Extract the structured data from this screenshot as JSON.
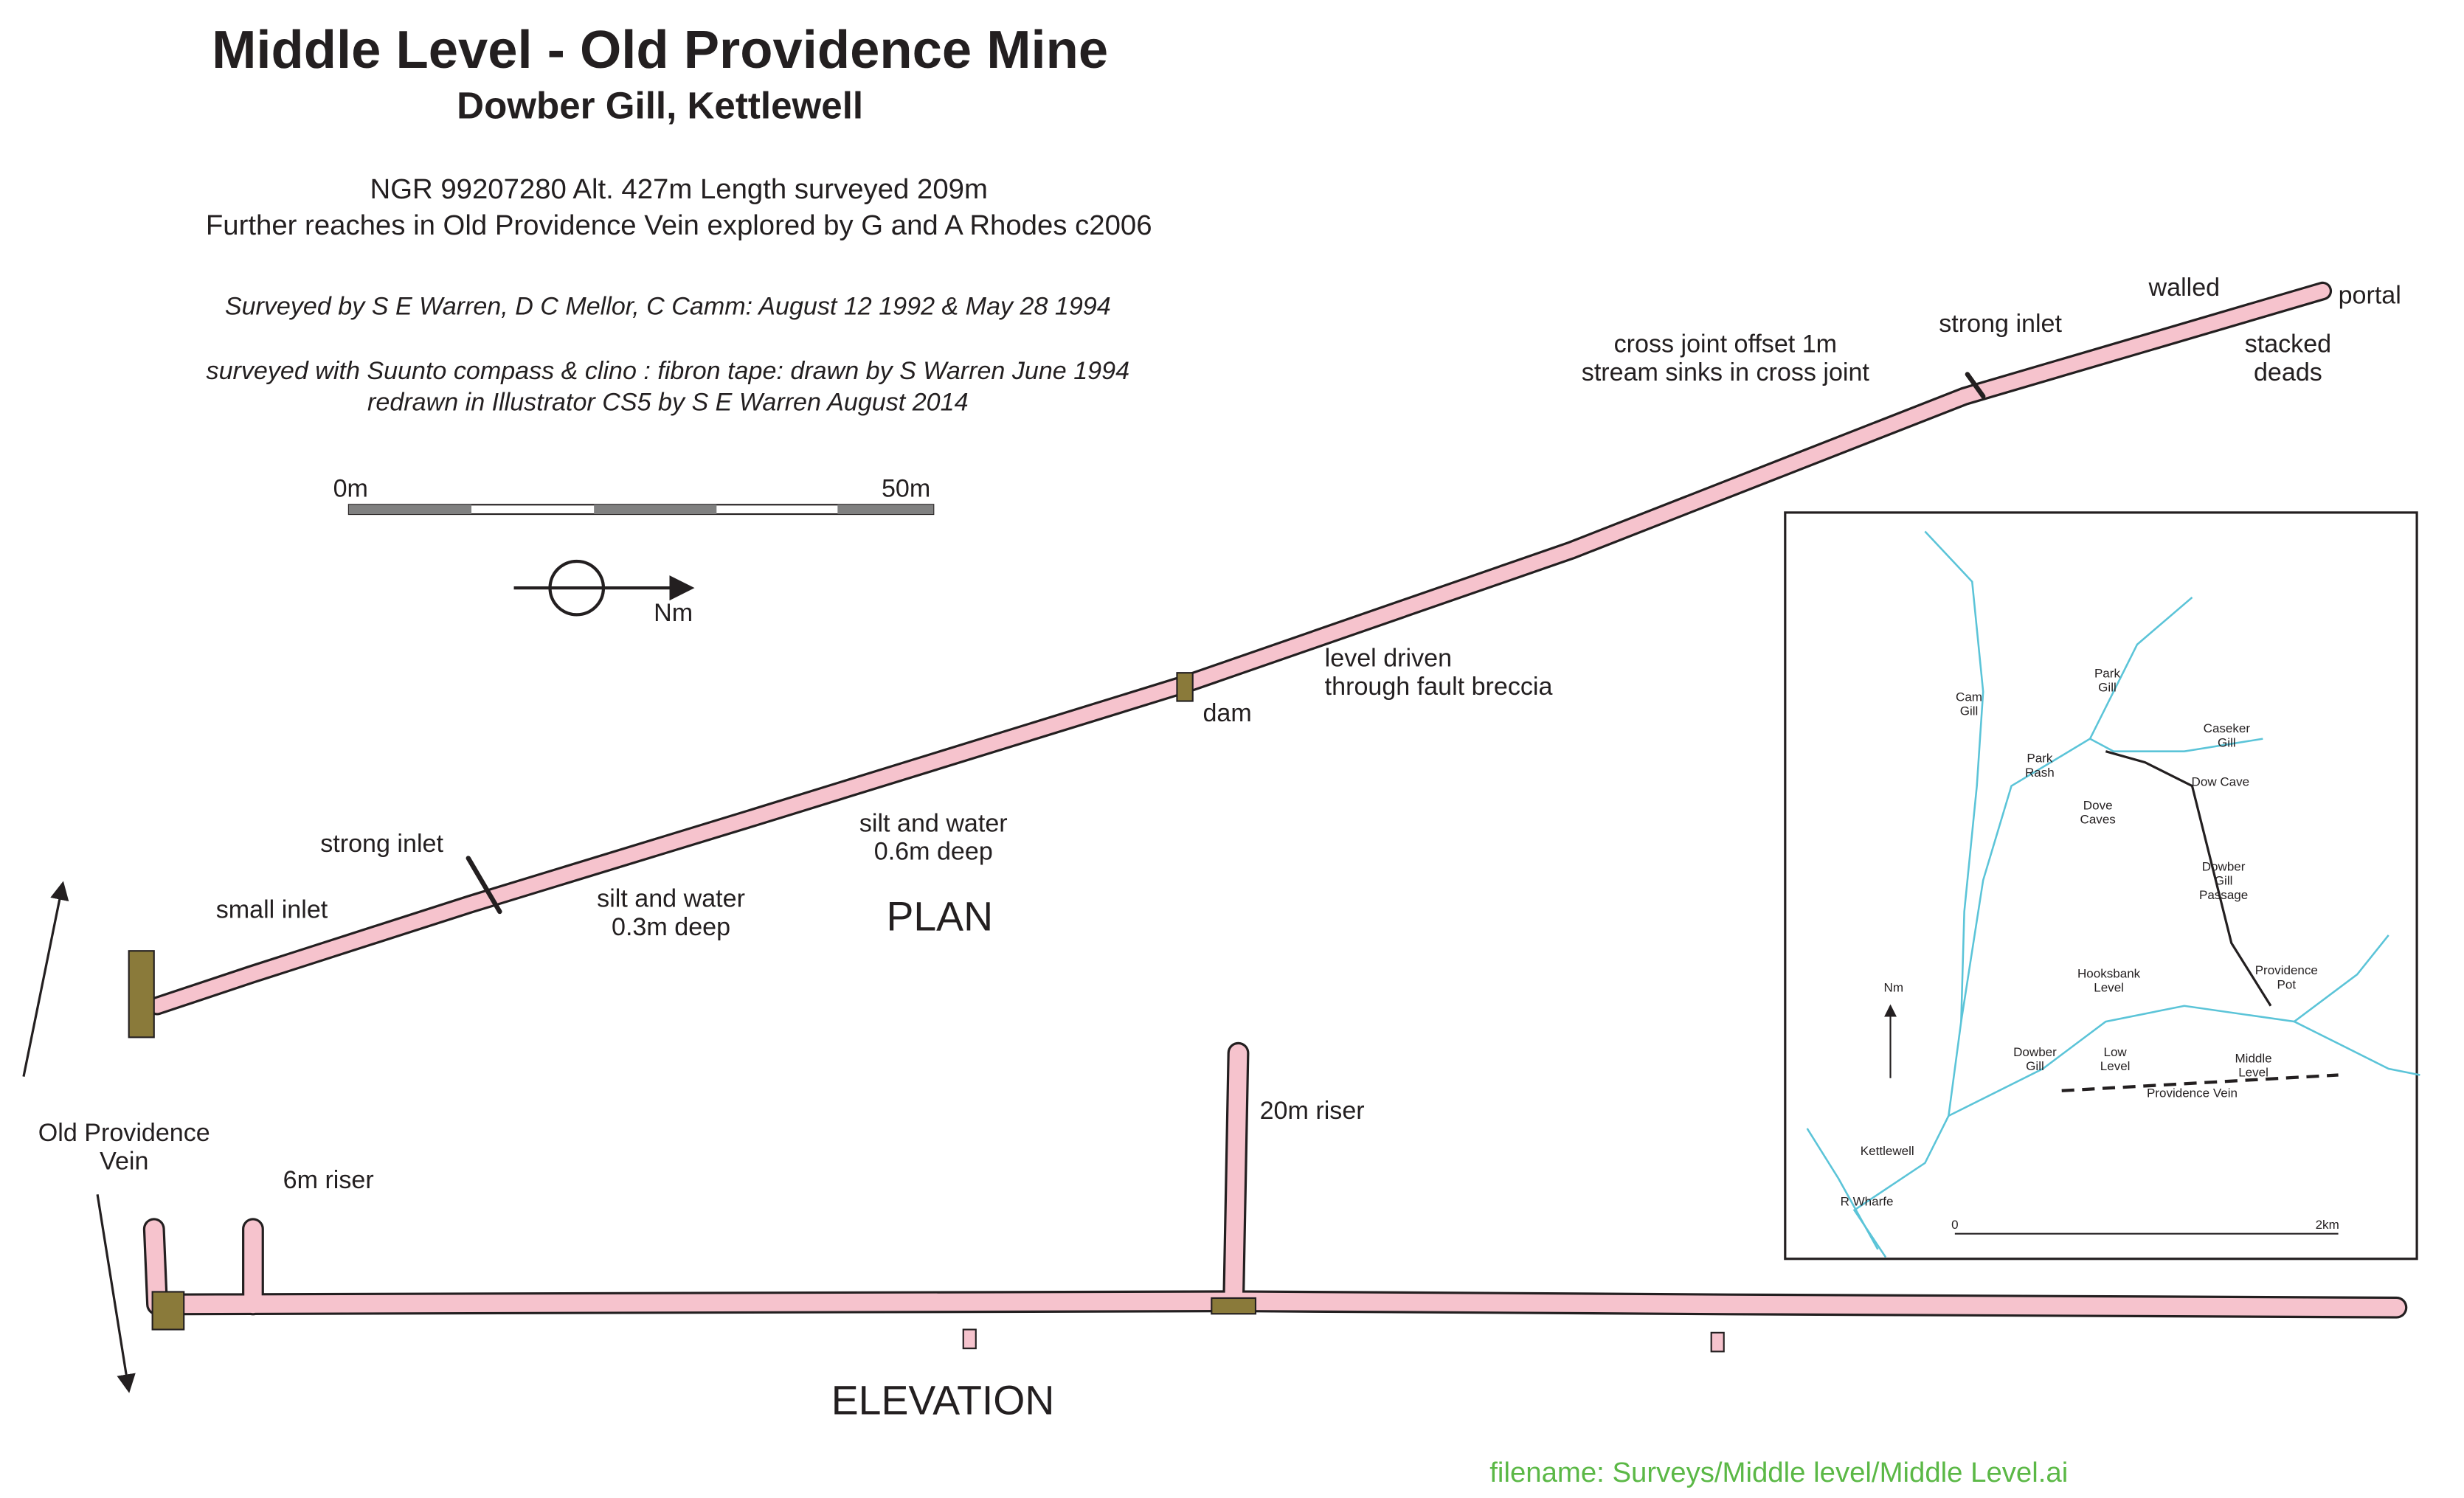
{
  "header": {
    "title": "Middle Level - Old Providence Mine",
    "subtitle": "Dowber Gill, Kettlewell",
    "info": [
      "NGR 99207280   Alt. 427m  Length surveyed 209m",
      "Further reaches in Old Providence Vein explored by G and A Rhodes c2006"
    ],
    "surveyors": "Surveyed by S  E Warren, D C Mellor, C Camm: August 12 1992 & May 28 1994",
    "credits": [
      "surveyed with Suunto compass & clino : fibron tape: drawn by S Warren June 1994",
      "redrawn in Illustrator CS5 by S E Warren August 2014"
    ]
  },
  "scale": {
    "start": "0m",
    "end": "50m"
  },
  "north": "Nm",
  "plan": {
    "title": "PLAN",
    "labels": [
      [
        "small inlet"
      ],
      [
        "strong inlet"
      ],
      [
        "silt and water",
        "0.3m deep"
      ],
      [
        "silt and water",
        "0.6m deep"
      ],
      [
        "dam"
      ],
      [
        "level driven",
        "through fault breccia"
      ],
      [
        "cross joint offset 1m",
        "stream sinks in cross joint"
      ],
      [
        "strong inlet"
      ],
      [
        "walled"
      ],
      [
        "portal"
      ],
      [
        "stacked",
        "deads"
      ]
    ]
  },
  "elevation": {
    "title": "ELEVATION",
    "vein": [
      "Old Providence",
      "Vein"
    ],
    "labels": [
      [
        "6m riser"
      ],
      [
        "20m riser"
      ]
    ]
  },
  "inset": {
    "labels": [
      [
        "Cam",
        "Gill"
      ],
      [
        "Park",
        "Gill"
      ],
      [
        "Park",
        "Rash"
      ],
      [
        "Caseker",
        "Gill"
      ],
      [
        "Dow Cave"
      ],
      [
        "Dove",
        "Caves"
      ],
      [
        "Dowber",
        "Gill",
        "Passage"
      ],
      [
        "Nm"
      ],
      [
        "Hooksbank",
        "Level"
      ],
      [
        "Providence",
        "Pot"
      ],
      [
        "Dowber",
        "Gill"
      ],
      [
        "Low",
        "Level"
      ],
      [
        "Middle",
        "Level"
      ],
      [
        "Providence Vein"
      ],
      [
        "Kettlewell"
      ],
      [
        "R Wharfe"
      ],
      [
        "0"
      ],
      [
        "2km"
      ]
    ]
  },
  "filename": "filename: Surveys/Middle level/Middle Level.ai"
}
